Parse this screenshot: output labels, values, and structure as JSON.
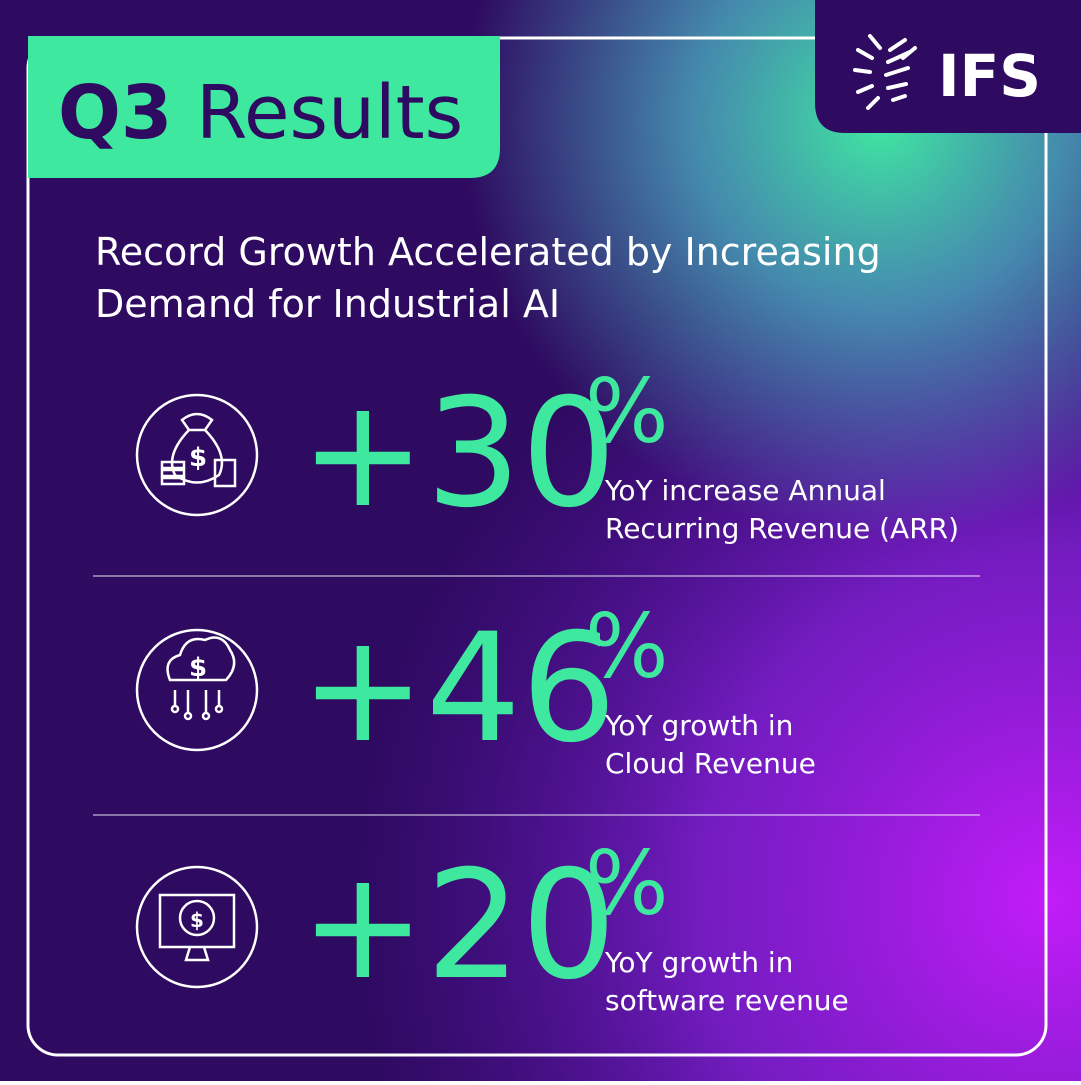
{
  "header": {
    "title_bold": "Q3",
    "title_rest": "Results",
    "logo": "IFS"
  },
  "subtitle": [
    "Record Growth Accelerated by Increasing",
    "Demand for Industrial AI"
  ],
  "stats": [
    {
      "number": "+30",
      "unit": "%",
      "description": [
        "YoY increase Annual",
        "Recurring Revenue (ARR)"
      ]
    },
    {
      "number": "+46",
      "unit": "%",
      "description": [
        "YoY growth in",
        "Cloud Revenue"
      ]
    },
    {
      "number": "+20",
      "unit": "%",
      "description": [
        "YoY growth in",
        "software revenue"
      ]
    }
  ]
}
